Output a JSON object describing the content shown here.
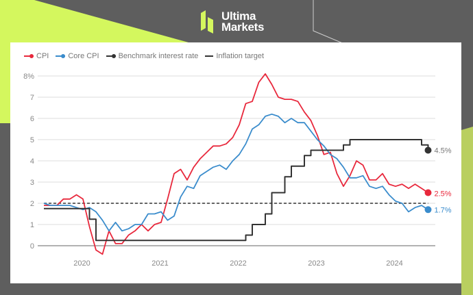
{
  "brand": {
    "name_line1": "Ultima",
    "name_line2": "Markets",
    "accent": "#d4f75e",
    "background": "#5e5e5e"
  },
  "chart_data": {
    "type": "line",
    "title": "",
    "legend": [
      {
        "name": "CPI",
        "color": "#e8283c",
        "style": "line"
      },
      {
        "name": "Core CPI",
        "color": "#3a8ccc",
        "style": "line"
      },
      {
        "name": "Benchmark interest rate",
        "color": "#333333",
        "style": "step"
      },
      {
        "name": "Inflation target",
        "color": "#333333",
        "style": "dashed"
      }
    ],
    "legend_placement": "top-left",
    "x_start": "2019-08",
    "x_end": "2024-07",
    "x_frequency": "monthly",
    "x_ticks": [
      "2020",
      "2021",
      "2022",
      "2023",
      "2024"
    ],
    "y_ticks": [
      "0",
      "1",
      "2",
      "3",
      "4",
      "5",
      "6",
      "7",
      "8%"
    ],
    "ylim": [
      -0.5,
      8
    ],
    "grid": "horizontal",
    "inflation_target": 2,
    "series": [
      {
        "name": "CPI",
        "color": "#e8283c",
        "end_label": "2.5%",
        "values": [
          1.9,
          1.9,
          1.9,
          2.2,
          2.2,
          2.4,
          2.2,
          0.9,
          -0.2,
          -0.4,
          0.7,
          0.1,
          0.1,
          0.5,
          0.7,
          1.0,
          0.7,
          1.0,
          1.1,
          2.2,
          3.4,
          3.6,
          3.1,
          3.7,
          4.1,
          4.4,
          4.7,
          4.7,
          4.8,
          5.1,
          5.7,
          6.7,
          6.8,
          7.7,
          8.1,
          7.6,
          7.0,
          6.9,
          6.9,
          6.8,
          6.3,
          5.9,
          5.2,
          4.3,
          4.4,
          3.4,
          2.8,
          3.3,
          4.0,
          3.8,
          3.1,
          3.1,
          3.4,
          2.9,
          2.8,
          2.9,
          2.7,
          2.9,
          2.7,
          2.5
        ]
      },
      {
        "name": "Core CPI",
        "color": "#3a8ccc",
        "end_label": "1.7%",
        "values": [
          2.0,
          1.9,
          1.9,
          1.9,
          1.9,
          1.8,
          1.7,
          1.8,
          1.6,
          1.2,
          0.7,
          1.1,
          0.7,
          0.8,
          1.0,
          1.0,
          1.5,
          1.5,
          1.6,
          1.2,
          1.4,
          2.3,
          2.8,
          2.7,
          3.3,
          3.5,
          3.7,
          3.8,
          3.6,
          4.0,
          4.3,
          4.8,
          5.5,
          5.7,
          6.1,
          6.2,
          6.1,
          5.8,
          6.0,
          5.8,
          5.8,
          5.4,
          5.0,
          4.7,
          4.3,
          4.1,
          3.7,
          3.2,
          3.2,
          3.3,
          2.8,
          2.7,
          2.8,
          2.4,
          2.1,
          2.0,
          1.6,
          1.8,
          1.9,
          1.7
        ]
      },
      {
        "name": "Benchmark interest rate",
        "color": "#333333",
        "end_label": "4.5%",
        "values": [
          1.75,
          1.75,
          1.75,
          1.75,
          1.75,
          1.75,
          1.75,
          1.25,
          0.25,
          0.25,
          0.25,
          0.25,
          0.25,
          0.25,
          0.25,
          0.25,
          0.25,
          0.25,
          0.25,
          0.25,
          0.25,
          0.25,
          0.25,
          0.25,
          0.25,
          0.25,
          0.25,
          0.25,
          0.25,
          0.25,
          0.25,
          0.5,
          1.0,
          1.0,
          1.5,
          2.5,
          2.5,
          3.25,
          3.75,
          3.75,
          4.25,
          4.5,
          4.5,
          4.5,
          4.5,
          4.5,
          4.75,
          5.0,
          5.0,
          5.0,
          5.0,
          5.0,
          5.0,
          5.0,
          5.0,
          5.0,
          5.0,
          5.0,
          4.75,
          4.5
        ]
      }
    ]
  }
}
